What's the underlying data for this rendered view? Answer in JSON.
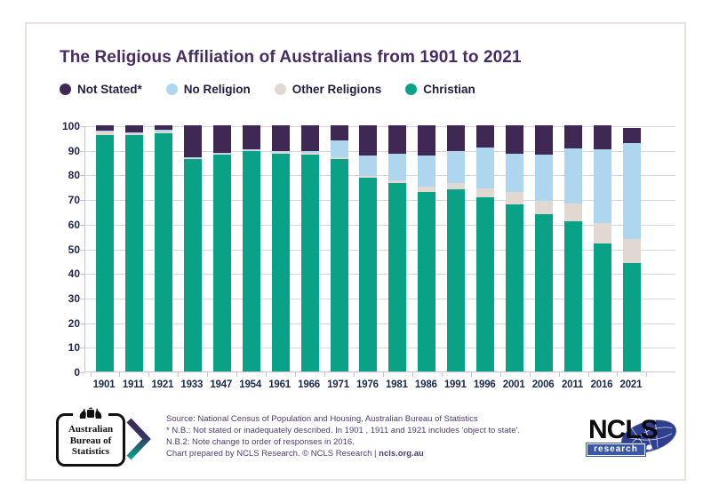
{
  "title": "The Religious Affiliation of Australians from 1901 to 2021",
  "colors": {
    "title": "#472b63",
    "not_stated": "#3f2853",
    "no_religion": "#afd6ef",
    "other_religions": "#e2d8d2",
    "christian": "#0aa287",
    "axis_text": "#1b2a4a",
    "gridline": "#d9d5de",
    "footer_text": "#4e3d72",
    "card_border": "#ece1dd",
    "ncls_blue": "#3c57a6",
    "ncls_ellipse": "#2f3e8f"
  },
  "legend": [
    {
      "label": "Not Stated*",
      "color": "#3f2853"
    },
    {
      "label": "No Religion",
      "color": "#afd6ef"
    },
    {
      "label": "Other Religions",
      "color": "#e2d8d2"
    },
    {
      "label": "Christian",
      "color": "#0aa287"
    }
  ],
  "chart_data": {
    "type": "bar",
    "stacked": true,
    "title": "The Religious Affiliation of Australians from 1901 to 2021",
    "xlabel": "",
    "ylabel": "",
    "ylim": [
      0,
      100
    ],
    "yticks": [
      0,
      10,
      20,
      30,
      40,
      50,
      60,
      70,
      80,
      90,
      100
    ],
    "grid": true,
    "legend_position": "top",
    "categories": [
      "1901",
      "1911",
      "1921",
      "1933",
      "1947",
      "1954",
      "1961",
      "1966",
      "1971",
      "1976",
      "1981",
      "1986",
      "1991",
      "1996",
      "2001",
      "2006",
      "2011",
      "2016",
      "2021"
    ],
    "series": [
      {
        "name": "Christian",
        "color": "#0aa287",
        "values": [
          96.1,
          95.9,
          96.9,
          86.4,
          88.0,
          89.4,
          88.3,
          88.2,
          86.2,
          78.6,
          76.4,
          73.0,
          74.0,
          70.9,
          68.0,
          63.9,
          61.1,
          52.1,
          43.9
        ]
      },
      {
        "name": "Other Religions",
        "color": "#e2d8d2",
        "values": [
          1.4,
          0.8,
          0.7,
          0.4,
          0.5,
          0.6,
          0.7,
          0.7,
          0.8,
          1.0,
          1.4,
          2.0,
          2.6,
          3.5,
          4.9,
          5.6,
          7.2,
          8.2,
          10.0
        ]
      },
      {
        "name": "No Religion",
        "color": "#afd6ef",
        "values": [
          0.4,
          0.4,
          0.5,
          0.2,
          0.3,
          0.3,
          0.4,
          0.8,
          6.7,
          8.3,
          10.8,
          12.7,
          12.9,
          16.6,
          15.5,
          18.7,
          22.3,
          30.1,
          38.9
        ]
      },
      {
        "name": "Not Stated*",
        "color": "#3f2853",
        "values": [
          2.1,
          2.9,
          1.9,
          13.0,
          11.2,
          9.7,
          10.6,
          10.3,
          6.3,
          12.1,
          11.4,
          12.3,
          10.5,
          9.0,
          11.6,
          11.8,
          9.4,
          9.6,
          6.0
        ]
      }
    ]
  },
  "footer": {
    "abs_logo": {
      "line1": "Australian",
      "line2": "Bureau of",
      "line3": "Statistics"
    },
    "source_lines": [
      "Source: National Census of Population and Housing, Australian Bureau of Statistics",
      "* N.B.: Not stated or inadequately described. In 1901 , 1911 and 1921 includes 'object to state'.",
      "N.B.2: Note change to order of responses in 2016."
    ],
    "credit_prefix": "Chart prepared by NCLS Research. © NCLS Research",
    "credit_separator": "|",
    "credit_link": "ncls.org.au",
    "ncls_logo": {
      "name": "NCLS",
      "sub": "research"
    }
  }
}
